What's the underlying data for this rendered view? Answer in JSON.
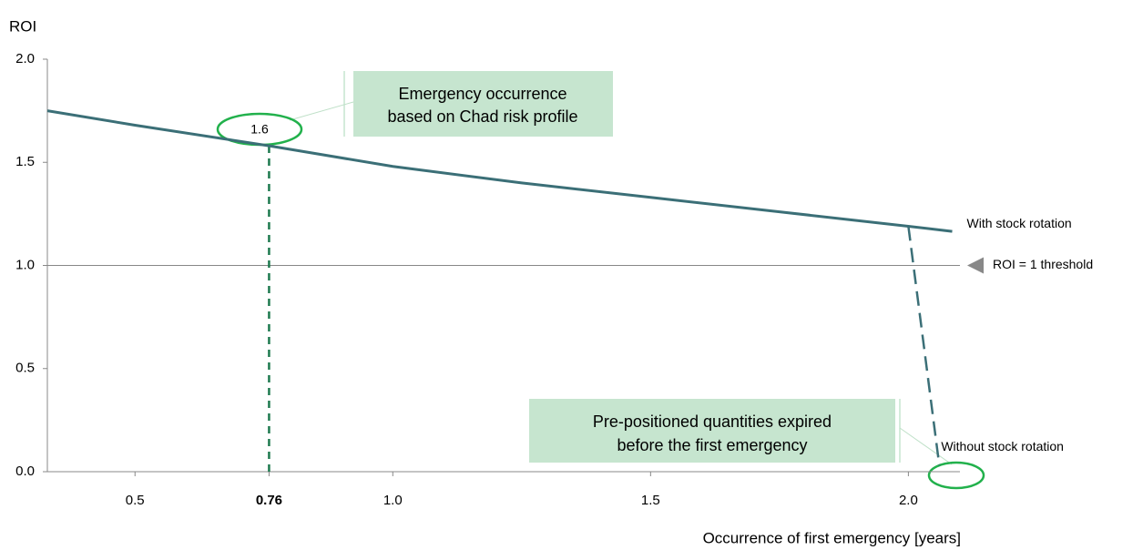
{
  "chart_data": {
    "type": "line",
    "y_label": "ROI",
    "x_label": "Occurrence of first emergency [years]",
    "xlim": [
      0.33,
      2.1
    ],
    "ylim": [
      0,
      2
    ],
    "xticks": [
      0.5,
      0.76,
      {
        "value": 1,
        "label": "1.0"
      },
      1.5,
      {
        "value": 2,
        "label": "2.0"
      }
    ],
    "yticks": [
      {
        "value": 0,
        "label": "0.0"
      },
      0.5,
      {
        "value": 1,
        "label": "1.0"
      },
      1.5,
      {
        "value": 2,
        "label": "2.0"
      }
    ],
    "highlight_tick": 1,
    "series": [
      {
        "name": "With stock rotation",
        "color": "#3b6f77",
        "dashed": false,
        "x": [
          0.33,
          0.5,
          0.76,
          1.0,
          1.25,
          1.5,
          1.75,
          2.0,
          2.085
        ],
        "values": [
          1.75,
          1.68,
          1.58,
          1.48,
          1.4,
          1.33,
          1.26,
          1.19,
          1.165
        ]
      },
      {
        "name": "Without stock rotation",
        "color": "#3b6f77",
        "dashed": true,
        "x": [
          2.0,
          2.06
        ],
        "values": [
          1.19,
          0.03
        ]
      }
    ],
    "threshold": {
      "value": 1,
      "label": "ROI = 1 threshold"
    },
    "marker": {
      "x": 0.76,
      "y": 1.6,
      "color": "#1e7a4f"
    },
    "callouts": [
      [
        "Emergency occurrence",
        "based on Chad risk profile"
      ],
      [
        "Pre-positioned quantities expired",
        "before the first emergency"
      ]
    ]
  }
}
